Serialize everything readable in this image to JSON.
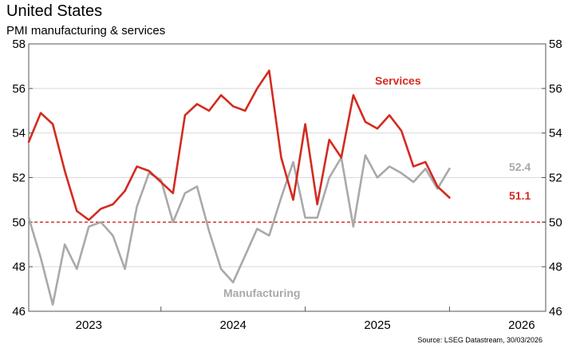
{
  "chart_data": {
    "type": "line",
    "title": "United States",
    "subtitle": "PMI manufacturing & services",
    "source": "Source: LSEG Datastream, 30/03/2026",
    "ylim": [
      46,
      58
    ],
    "yticks": [
      "46",
      "48",
      "50",
      "52",
      "54",
      "56",
      "58"
    ],
    "xlim": [
      0,
      43
    ],
    "xtick_labels": [
      "2023",
      "2024",
      "2025",
      "2026"
    ],
    "xtick_positions": [
      5,
      17,
      29,
      41
    ],
    "x_year_boundaries": [
      0,
      11,
      23,
      35
    ],
    "reference_line": 50,
    "series": [
      {
        "name": "Services",
        "color": "#d42a20",
        "end_label": "51.1",
        "values": [
          53.6,
          54.9,
          54.4,
          52.3,
          50.5,
          50.1,
          50.6,
          50.8,
          51.4,
          52.5,
          52.3,
          51.8,
          51.3,
          54.8,
          55.3,
          55.0,
          55.7,
          55.2,
          55.0,
          56.0,
          56.8,
          52.9,
          51.0,
          54.4,
          50.8,
          53.7,
          52.9,
          55.7,
          54.5,
          54.2,
          54.8,
          54.1,
          52.5,
          52.7,
          51.6,
          51.1
        ]
      },
      {
        "name": "Manufacturing",
        "color": "#a9a9a9",
        "end_label": "52.4",
        "values": [
          50.2,
          48.4,
          46.3,
          49.0,
          47.9,
          49.8,
          50.0,
          49.4,
          47.9,
          50.7,
          52.2,
          51.9,
          50.0,
          51.3,
          51.6,
          49.6,
          47.9,
          47.3,
          48.5,
          49.7,
          49.4,
          51.1,
          52.7,
          50.2,
          50.2,
          52.0,
          52.9,
          49.8,
          53.0,
          52.0,
          52.5,
          52.2,
          51.8,
          52.4,
          51.5,
          52.4
        ]
      }
    ]
  }
}
